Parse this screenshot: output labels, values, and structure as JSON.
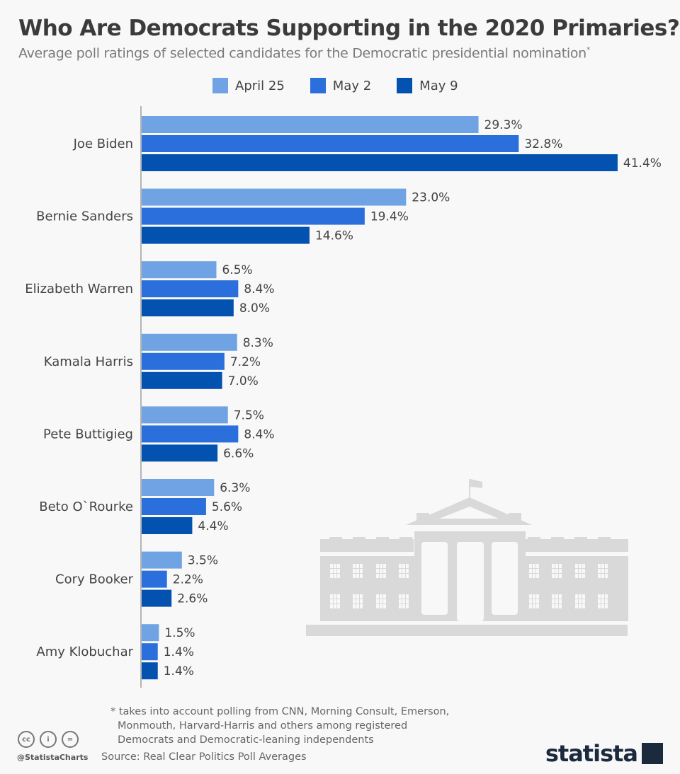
{
  "header": {
    "title": "Who Are Democrats Supporting in the 2020 Primaries?",
    "subtitle": "Average poll ratings of selected candidates for the Democratic presidential nomination",
    "subtitle_mark": "*"
  },
  "chart_data": {
    "type": "bar",
    "orientation": "horizontal",
    "title": "Who Are Democrats Supporting in the 2020 Primaries?",
    "categories": [
      "Joe Biden",
      "Bernie Sanders",
      "Elizabeth Warren",
      "Kamala Harris",
      "Pete Buttigieg",
      "Beto O`Rourke",
      "Cory Booker",
      "Amy Klobuchar"
    ],
    "series": [
      {
        "name": "April 25",
        "color": "#6fa3e4",
        "values": [
          29.3,
          23.0,
          6.5,
          8.3,
          7.5,
          6.3,
          3.5,
          1.5
        ]
      },
      {
        "name": "May 2",
        "color": "#2a6fdb",
        "values": [
          32.8,
          19.4,
          8.4,
          7.2,
          8.4,
          5.6,
          2.2,
          1.4
        ]
      },
      {
        "name": "May 9",
        "color": "#0452b0",
        "values": [
          41.4,
          14.6,
          8.0,
          7.0,
          6.6,
          4.4,
          2.6,
          1.4
        ]
      }
    ],
    "value_suffix": "%",
    "xlim": [
      0,
      45
    ],
    "grid": false,
    "legend_position": "top"
  },
  "footer": {
    "note_lines": [
      "* takes into account polling from CNN, Morning Consult, Emerson,",
      "Monmouth, Harvard-Harris and others among registered",
      "Democrats and Democratic-leaning independents"
    ],
    "source": "Source: Real Clear Politics Poll Averages",
    "handle": "@StatistaCharts",
    "cc_icons": [
      "cc",
      "by",
      "nd"
    ],
    "cc_labels": [
      "cc",
      "i",
      "="
    ],
    "logo": "statista"
  }
}
